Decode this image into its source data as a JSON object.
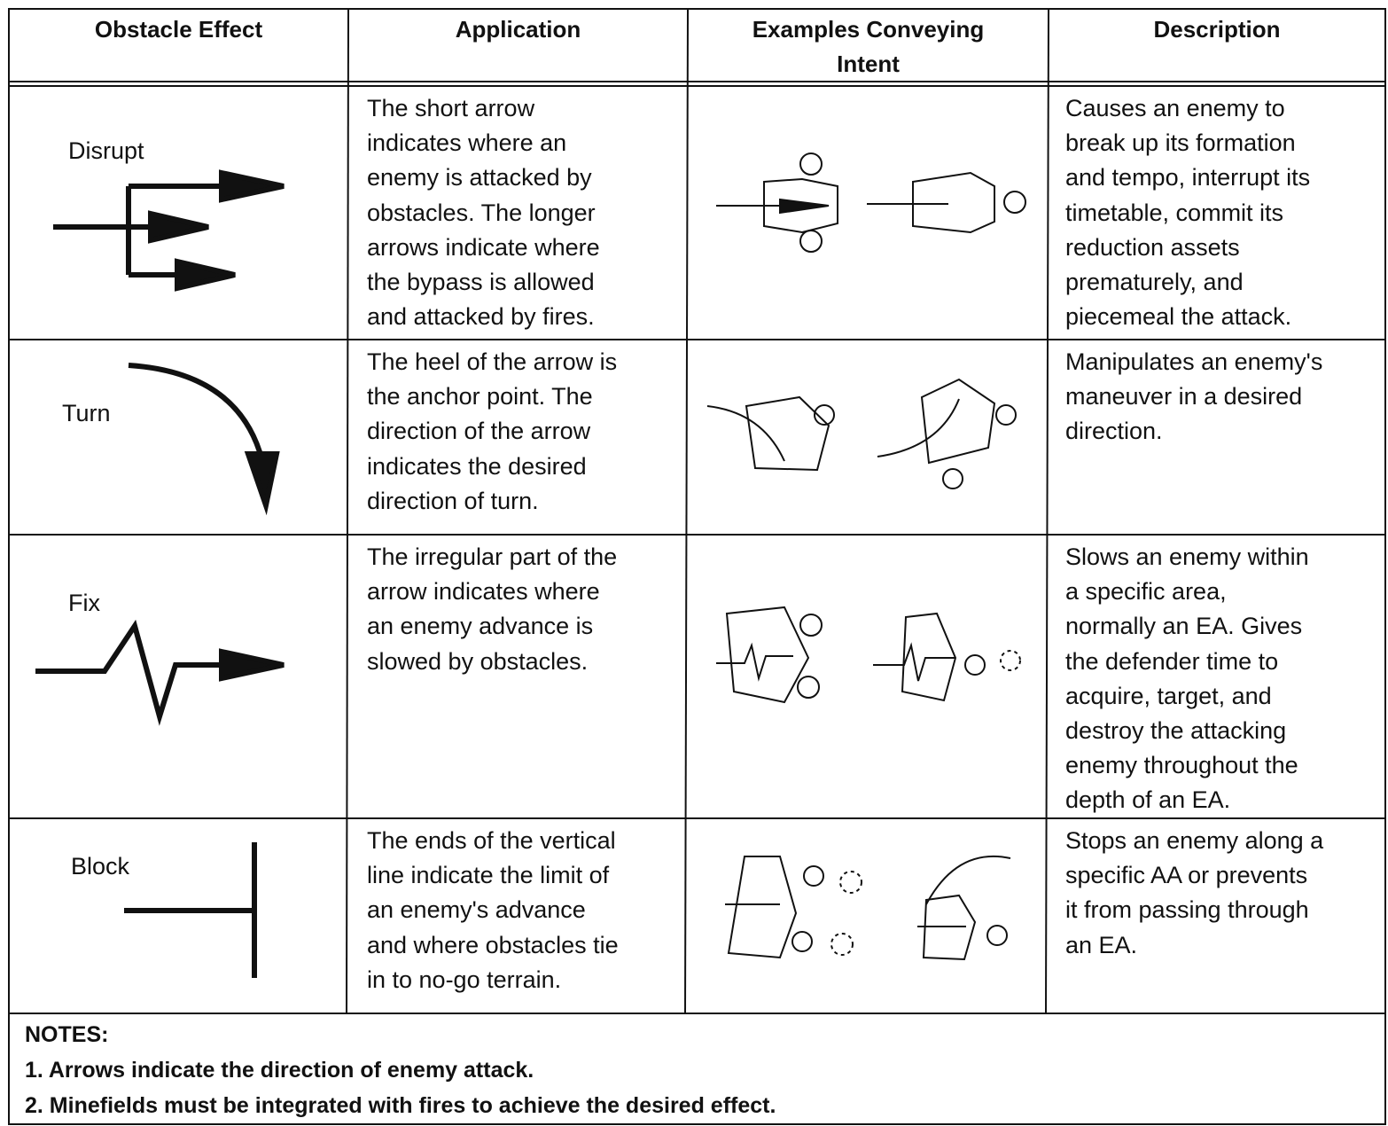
{
  "table": {
    "header": [
      "Obstacle Effect",
      "Application",
      "Examples Conveying Intent",
      "Description"
    ],
    "rows": [
      {
        "effect": "Disrupt",
        "application": [
          "The short arrow",
          "indicates where an",
          "enemy is attacked by",
          "obstacles. The longer",
          "arrows indicate where",
          "the bypass is allowed",
          "and attacked by fires."
        ],
        "description": [
          "Causes an enemy to",
          "break up its formation",
          "and tempo, interrupt its",
          "timetable, commit its",
          "reduction assets",
          "prematurely, and",
          "piecemeal the attack."
        ]
      },
      {
        "effect": "Turn",
        "application": [
          "The heel of the arrow is",
          "the anchor point. The",
          "direction of the arrow",
          "indicates the desired",
          "direction of turn."
        ],
        "description": [
          "Manipulates an enemy's",
          "maneuver in a desired",
          "direction."
        ]
      },
      {
        "effect": "Fix",
        "application": [
          "The irregular part of the",
          "arrow indicates where",
          "an enemy advance is",
          "slowed by obstacles."
        ],
        "description": [
          "Slows an enemy within",
          "a specific area,",
          "normally an EA. Gives",
          "the defender time to",
          "acquire, target, and",
          "destroy the attacking",
          "enemy throughout the",
          "depth of an EA."
        ]
      },
      {
        "effect": "Block",
        "application": [
          "The ends of the vertical",
          "line indicate the limit of",
          "an enemy's advance",
          "and where obstacles tie",
          "in to no-go terrain."
        ],
        "description": [
          "Stops an enemy along a",
          "specific AA or prevents",
          "it from passing through",
          "an EA."
        ]
      }
    ],
    "notes": {
      "title": "NOTES:",
      "items": [
        "1. Arrows indicate the direction of enemy attack.",
        "2. Minefields must be integrated with fires to achieve the desired effect."
      ]
    }
  }
}
